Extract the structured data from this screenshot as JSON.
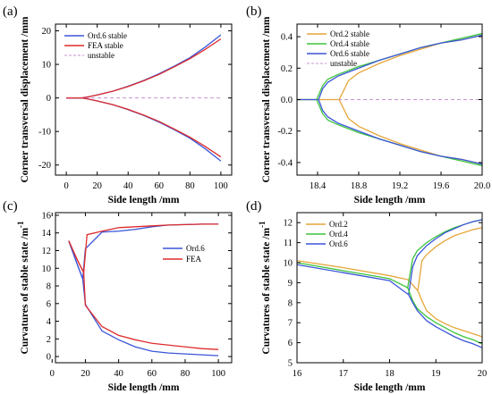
{
  "figure": {
    "panel_labels": [
      "(a)",
      "(b)",
      "(c)",
      "(d)"
    ]
  },
  "chart_data": [
    {
      "panel": "(a)",
      "type": "line",
      "xlabel": "Side length /mm",
      "ylabel": "Corner transversal displacement /mm",
      "xlim": [
        -7,
        107
      ],
      "ylim": [
        -23,
        22
      ],
      "xticks": [
        0,
        20,
        40,
        60,
        80,
        100
      ],
      "yticks": [
        -20,
        -10,
        0,
        10,
        20
      ],
      "grid": false,
      "legend_position": "top-left",
      "series": [
        {
          "name": "Ord.6 stable",
          "color": "#3b55d9",
          "style": "solid",
          "x": [
            0,
            10,
            15,
            20,
            30,
            40,
            50,
            60,
            70,
            80,
            90,
            100
          ],
          "y": [
            0,
            0,
            0.4,
            0.9,
            2.0,
            3.5,
            5.2,
            7.2,
            9.5,
            12.0,
            15.2,
            18.8
          ]
        },
        {
          "name": "FEA stable",
          "color": "#dd2c2c",
          "style": "solid",
          "x": [
            0,
            10,
            15,
            20,
            30,
            40,
            50,
            60,
            70,
            80,
            90,
            100
          ],
          "y": [
            0,
            0,
            0.4,
            0.9,
            2.0,
            3.4,
            5.1,
            7.0,
            9.3,
            11.7,
            14.5,
            17.6
          ]
        },
        {
          "name": "unstable",
          "color": "#c98fd6",
          "style": "dashed",
          "x": [
            0,
            100
          ],
          "y": [
            0,
            0
          ]
        },
        {
          "name": "",
          "color": "#3b55d9",
          "style": "solid",
          "x": [
            0,
            10,
            15,
            20,
            30,
            40,
            50,
            60,
            70,
            80,
            90,
            100
          ],
          "y": [
            0,
            0,
            -0.4,
            -0.9,
            -2.0,
            -3.5,
            -5.2,
            -7.2,
            -9.5,
            -12.0,
            -15.2,
            -18.8
          ]
        },
        {
          "name": "",
          "color": "#dd2c2c",
          "style": "solid",
          "x": [
            0,
            10,
            15,
            20,
            30,
            40,
            50,
            60,
            70,
            80,
            90,
            100
          ],
          "y": [
            0,
            0,
            -0.4,
            -0.9,
            -2.0,
            -3.4,
            -5.1,
            -7.0,
            -9.3,
            -11.7,
            -14.5,
            -17.6
          ]
        }
      ]
    },
    {
      "panel": "(b)",
      "type": "line",
      "xlabel": "Side length /mm",
      "ylabel": "Corner transversal displacement /mm",
      "xlim": [
        18.2,
        20.0
      ],
      "ylim": [
        -0.48,
        0.48
      ],
      "xticks": [
        18.4,
        18.8,
        19.2,
        19.6,
        20.0
      ],
      "xtick_labels": [
        "18.4",
        "18.8",
        "19.2",
        "19.6",
        "20.0"
      ],
      "yticks": [
        -0.4,
        -0.2,
        0.0,
        0.2,
        0.4
      ],
      "ytick_labels": [
        "-0.4",
        "-0.2",
        "0.0",
        "0.2",
        "0.4"
      ],
      "grid": false,
      "legend_position": "top-left",
      "series": [
        {
          "name": "Ord.2 stable",
          "color": "#e6a63a",
          "style": "solid",
          "x": [
            18.2,
            18.61,
            18.7,
            18.8,
            19.0,
            19.2,
            19.4,
            19.6,
            19.8,
            20.0
          ],
          "y": [
            0,
            0,
            0.12,
            0.17,
            0.23,
            0.28,
            0.32,
            0.36,
            0.38,
            0.41
          ]
        },
        {
          "name": "Ord.4 stable",
          "color": "#3cc43c",
          "style": "solid",
          "x": [
            18.2,
            18.39,
            18.45,
            18.5,
            18.6,
            18.8,
            19.0,
            19.2,
            19.4,
            19.6,
            19.8,
            20.0
          ],
          "y": [
            0,
            0,
            0.09,
            0.13,
            0.16,
            0.21,
            0.25,
            0.29,
            0.33,
            0.36,
            0.39,
            0.42
          ]
        },
        {
          "name": "Ord.6 stable",
          "color": "#3b55d9",
          "style": "solid",
          "x": [
            18.2,
            18.41,
            18.45,
            18.5,
            18.6,
            18.8,
            19.0,
            19.2,
            19.4,
            19.6,
            19.8,
            20.0
          ],
          "y": [
            0,
            0,
            0.07,
            0.11,
            0.15,
            0.2,
            0.25,
            0.29,
            0.33,
            0.36,
            0.38,
            0.41
          ]
        },
        {
          "name": "unstable",
          "color": "#c98fd6",
          "style": "dashed",
          "x": [
            18.6,
            20.0
          ],
          "y": [
            0,
            0
          ]
        },
        {
          "name": "",
          "color": "#e6a63a",
          "style": "solid",
          "x": [
            18.61,
            18.7,
            18.8,
            19.0,
            19.2,
            19.4,
            19.6,
            19.8,
            20.0
          ],
          "y": [
            0,
            -0.12,
            -0.17,
            -0.23,
            -0.28,
            -0.32,
            -0.36,
            -0.38,
            -0.41
          ]
        },
        {
          "name": "",
          "color": "#3cc43c",
          "style": "solid",
          "x": [
            18.39,
            18.45,
            18.5,
            18.6,
            18.8,
            19.0,
            19.2,
            19.4,
            19.6,
            19.8,
            20.0
          ],
          "y": [
            0,
            -0.09,
            -0.13,
            -0.16,
            -0.21,
            -0.25,
            -0.29,
            -0.33,
            -0.36,
            -0.39,
            -0.42
          ]
        },
        {
          "name": "",
          "color": "#3b55d9",
          "style": "solid",
          "x": [
            18.41,
            18.45,
            18.5,
            18.6,
            18.8,
            19.0,
            19.2,
            19.4,
            19.6,
            19.8,
            20.0
          ],
          "y": [
            0,
            -0.07,
            -0.11,
            -0.15,
            -0.2,
            -0.25,
            -0.29,
            -0.33,
            -0.36,
            -0.38,
            -0.41
          ]
        }
      ]
    },
    {
      "panel": "(c)",
      "type": "line",
      "xlabel": "Side length /mm",
      "ylabel": "Curvatures of stable state /m",
      "ylabel_superscript": "-1",
      "xlim": [
        2,
        108
      ],
      "ylim": [
        -0.7,
        16.3
      ],
      "xticks": [
        0,
        20,
        40,
        60,
        80,
        100
      ],
      "yticks": [
        0,
        2,
        4,
        6,
        8,
        10,
        12,
        14,
        16
      ],
      "grid": false,
      "legend_position": "center-right",
      "series": [
        {
          "name": "Ord.6",
          "color": "#3b55d9",
          "style": "solid",
          "x": [
            10,
            15,
            18.4,
            20,
            30,
            40,
            50,
            60,
            70,
            80,
            90,
            100
          ],
          "y": [
            13.1,
            10.5,
            8.8,
            12.2,
            14.1,
            14.2,
            14.4,
            14.7,
            14.9,
            14.95,
            15.0,
            15.0
          ]
        },
        {
          "name": "FEA",
          "color": "#dd2c2c",
          "style": "solid",
          "x": [
            10,
            15,
            19,
            21,
            30,
            40,
            50,
            60,
            70,
            80,
            90,
            100
          ],
          "y": [
            13.1,
            11.0,
            9.5,
            13.8,
            14.2,
            14.6,
            14.7,
            14.8,
            14.9,
            14.95,
            15.0,
            15.0
          ]
        },
        {
          "name": "",
          "color": "#3b55d9",
          "style": "solid",
          "x": [
            10,
            15,
            18.4,
            20,
            30,
            40,
            50,
            60,
            70,
            80,
            90,
            100
          ],
          "y": [
            13.1,
            10.5,
            8.8,
            5.9,
            2.9,
            1.9,
            1.1,
            0.6,
            0.4,
            0.3,
            0.2,
            0.1
          ]
        },
        {
          "name": "",
          "color": "#dd2c2c",
          "style": "solid",
          "x": [
            10,
            15,
            19,
            20,
            30,
            40,
            50,
            60,
            70,
            80,
            90,
            100
          ],
          "y": [
            13.1,
            11.0,
            9.5,
            5.8,
            3.4,
            2.4,
            1.9,
            1.5,
            1.3,
            1.1,
            0.9,
            0.8
          ]
        }
      ]
    },
    {
      "panel": "(d)",
      "type": "line",
      "xlabel": "Side length /mm",
      "ylabel": "Curvatures of stable state /m",
      "ylabel_superscript": "-1",
      "xlim": [
        16,
        20
      ],
      "ylim": [
        5,
        12.5
      ],
      "xticks": [
        16,
        17,
        18,
        19,
        20
      ],
      "yticks": [
        5,
        6,
        7,
        8,
        9,
        10,
        11,
        12
      ],
      "grid": false,
      "legend_position": "top-left",
      "series": [
        {
          "name": "Ord.2",
          "color": "#e6a63a",
          "style": "solid",
          "x": [
            16,
            17,
            18,
            18.4,
            18.61,
            18.7,
            18.8,
            19.0,
            19.2,
            19.4,
            19.6,
            19.8,
            20.0
          ],
          "y": [
            10.1,
            9.75,
            9.35,
            9.15,
            8.6,
            10.1,
            10.4,
            10.8,
            11.1,
            11.35,
            11.5,
            11.65,
            11.75
          ]
        },
        {
          "name": "Ord.4",
          "color": "#3cc43c",
          "style": "solid",
          "x": [
            16,
            17,
            18,
            18.39,
            18.5,
            18.6,
            18.8,
            19.0,
            19.2,
            19.4,
            19.6,
            19.8,
            20.0
          ],
          "y": [
            10.0,
            9.6,
            9.2,
            8.75,
            10.2,
            10.6,
            11.0,
            11.3,
            11.55,
            11.75,
            11.9,
            12.05,
            12.15
          ]
        },
        {
          "name": "Ord.6",
          "color": "#3b55d9",
          "style": "solid",
          "x": [
            16,
            17,
            18,
            18.41,
            18.5,
            18.6,
            18.8,
            19.0,
            19.2,
            19.4,
            19.6,
            19.8,
            20.0
          ],
          "y": [
            9.9,
            9.5,
            9.1,
            8.4,
            9.8,
            10.35,
            10.85,
            11.2,
            11.5,
            11.7,
            11.9,
            12.05,
            12.15
          ]
        },
        {
          "name": "",
          "color": "#e6a63a",
          "style": "solid",
          "x": [
            18.61,
            18.7,
            18.8,
            19.0,
            19.2,
            19.4,
            19.6,
            19.8,
            20.0
          ],
          "y": [
            8.6,
            8.1,
            7.6,
            7.2,
            6.95,
            6.75,
            6.6,
            6.45,
            6.3
          ]
        },
        {
          "name": "",
          "color": "#3cc43c",
          "style": "solid",
          "x": [
            18.39,
            18.5,
            18.6,
            18.8,
            19.0,
            19.2,
            19.4,
            19.6,
            19.8,
            20.0
          ],
          "y": [
            8.75,
            8.1,
            7.7,
            7.3,
            7.0,
            6.75,
            6.5,
            6.3,
            6.15,
            5.95
          ]
        },
        {
          "name": "",
          "color": "#3b55d9",
          "style": "solid",
          "x": [
            18.41,
            18.5,
            18.6,
            18.8,
            19.0,
            19.2,
            19.4,
            19.6,
            19.8,
            20.0
          ],
          "y": [
            8.4,
            8.0,
            7.6,
            7.1,
            6.8,
            6.55,
            6.3,
            6.1,
            5.95,
            5.75
          ]
        }
      ]
    }
  ]
}
